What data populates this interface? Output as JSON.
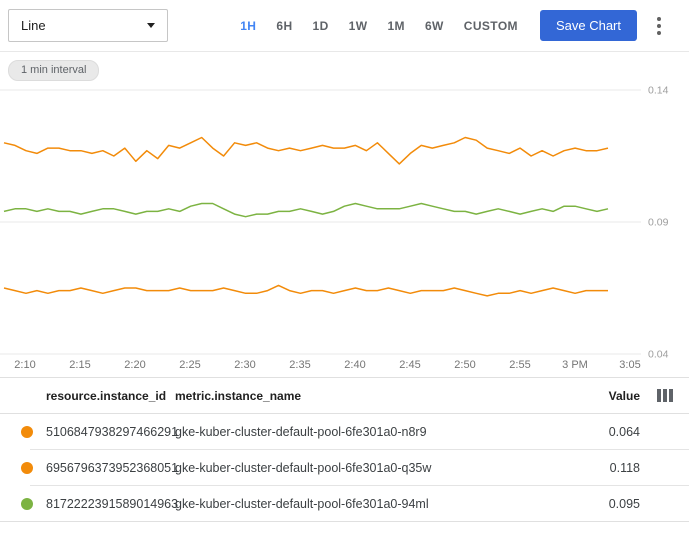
{
  "toolbar": {
    "chart_type_value": "Line",
    "time_ranges": [
      {
        "label": "1H",
        "selected": true
      },
      {
        "label": "6H",
        "selected": false
      },
      {
        "label": "1D",
        "selected": false
      },
      {
        "label": "1W",
        "selected": false
      },
      {
        "label": "1M",
        "selected": false
      },
      {
        "label": "6W",
        "selected": false
      },
      {
        "label": "CUSTOM",
        "selected": false
      }
    ],
    "save_label": "Save Chart"
  },
  "chip": {
    "label": "1 min interval"
  },
  "chart_data": {
    "type": "line",
    "interval": "1 min",
    "grid": "horizontal",
    "legend_position": "table-below",
    "ylim": [
      0.04,
      0.14
    ],
    "y_ticks": [
      "0.14",
      "0.09",
      "0.04"
    ],
    "x_ticks": [
      "2:10",
      "2:15",
      "2:20",
      "2:25",
      "2:30",
      "2:35",
      "2:40",
      "2:45",
      "2:50",
      "2:55",
      "3 PM",
      "3:05"
    ],
    "series": [
      {
        "name": "gke-kuber-cluster-default-pool-6fe301a0-q35w",
        "color": "#F28B0A",
        "current_value": 0.118,
        "values": [
          0.12,
          0.119,
          0.117,
          0.116,
          0.118,
          0.118,
          0.117,
          0.117,
          0.116,
          0.117,
          0.115,
          0.118,
          0.113,
          0.117,
          0.114,
          0.119,
          0.118,
          0.12,
          0.122,
          0.118,
          0.115,
          0.12,
          0.119,
          0.12,
          0.118,
          0.117,
          0.118,
          0.117,
          0.118,
          0.119,
          0.118,
          0.118,
          0.119,
          0.117,
          0.12,
          0.116,
          0.112,
          0.116,
          0.119,
          0.118,
          0.119,
          0.12,
          0.122,
          0.121,
          0.118,
          0.117,
          0.116,
          0.118,
          0.115,
          0.117,
          0.115,
          0.117,
          0.118,
          0.117,
          0.117,
          0.118
        ]
      },
      {
        "name": "gke-kuber-cluster-default-pool-6fe301a0-94ml",
        "color": "#7CB342",
        "current_value": 0.095,
        "values": [
          0.094,
          0.095,
          0.095,
          0.094,
          0.095,
          0.094,
          0.094,
          0.093,
          0.094,
          0.095,
          0.095,
          0.094,
          0.093,
          0.094,
          0.094,
          0.095,
          0.094,
          0.096,
          0.097,
          0.097,
          0.095,
          0.093,
          0.092,
          0.093,
          0.093,
          0.094,
          0.094,
          0.095,
          0.094,
          0.093,
          0.094,
          0.096,
          0.097,
          0.096,
          0.095,
          0.095,
          0.095,
          0.096,
          0.097,
          0.096,
          0.095,
          0.094,
          0.094,
          0.093,
          0.094,
          0.095,
          0.094,
          0.093,
          0.094,
          0.095,
          0.094,
          0.096,
          0.096,
          0.095,
          0.094,
          0.095
        ]
      },
      {
        "name": "gke-kuber-cluster-default-pool-6fe301a0-n8r9",
        "color": "#F28B0A",
        "current_value": 0.064,
        "values": [
          0.065,
          0.064,
          0.063,
          0.064,
          0.063,
          0.064,
          0.064,
          0.065,
          0.064,
          0.063,
          0.064,
          0.065,
          0.065,
          0.064,
          0.064,
          0.064,
          0.065,
          0.064,
          0.064,
          0.064,
          0.065,
          0.064,
          0.063,
          0.063,
          0.064,
          0.066,
          0.064,
          0.063,
          0.064,
          0.064,
          0.063,
          0.064,
          0.065,
          0.064,
          0.064,
          0.065,
          0.064,
          0.063,
          0.064,
          0.064,
          0.064,
          0.065,
          0.064,
          0.063,
          0.062,
          0.063,
          0.063,
          0.064,
          0.063,
          0.064,
          0.065,
          0.064,
          0.063,
          0.064,
          0.064,
          0.064
        ]
      }
    ]
  },
  "table": {
    "columns": [
      "resource.instance_id",
      "metric.instance_name",
      "Value"
    ],
    "rows": [
      {
        "color": "#F28B0A",
        "instance_id": "5106847938297466291",
        "instance_name": "gke-kuber-cluster-default-pool-6fe301a0-n8r9",
        "value": "0.064"
      },
      {
        "color": "#F28B0A",
        "instance_id": "6956796373952368051",
        "instance_name": "gke-kuber-cluster-default-pool-6fe301a0-q35w",
        "value": "0.118"
      },
      {
        "color": "#7CB342",
        "instance_id": "8172222391589014963",
        "instance_name": "gke-kuber-cluster-default-pool-6fe301a0-94ml",
        "value": "0.095"
      }
    ]
  },
  "colors": {
    "selected_range": "#4285F4",
    "save_button": "#3367D6",
    "gridline": "#E8E8E8",
    "y_axis_label": "#9E9E9E",
    "x_axis_label": "#757575"
  }
}
